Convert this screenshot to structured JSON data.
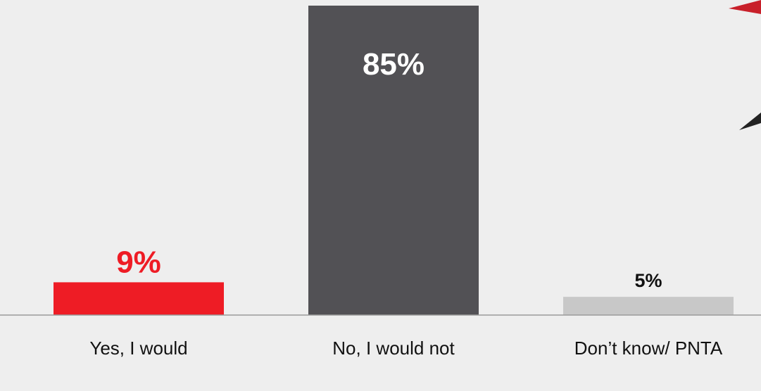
{
  "chart_data": {
    "type": "bar",
    "categories": [
      "Yes, I would",
      "No, I would not",
      "Don’t know/ PNTA"
    ],
    "values": [
      9,
      85,
      5
    ],
    "value_labels": [
      "9%",
      "85%",
      "5%"
    ],
    "colors": [
      "#ee1c25",
      "#525155",
      "#c8c8c8"
    ],
    "label_colors": [
      "#ee1c25",
      "#ffffff",
      "#111111"
    ]
  }
}
